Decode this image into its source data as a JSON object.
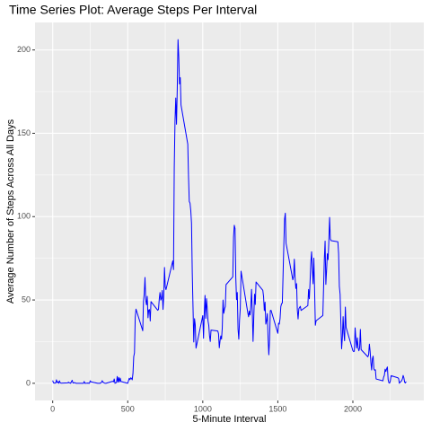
{
  "chart_data": {
    "type": "line",
    "title": "Time Series Plot: Average Steps Per Interval",
    "xlabel": "5-Minute Interval",
    "ylabel": "Average Number of Steps Across All Days",
    "color": "#0000ff",
    "grid": true,
    "xlim": [
      -117.75,
      2472.75
    ],
    "ylim": [
      -10.3,
      216.5
    ],
    "xticks": [
      0,
      500,
      1000,
      1500,
      2000
    ],
    "yticks": [
      0,
      50,
      100,
      150,
      200
    ],
    "xminorticks": [
      250,
      750,
      1250,
      1750,
      2250
    ],
    "yminorticks": [
      25,
      75,
      125,
      175
    ],
    "x": [
      0,
      5,
      10,
      15,
      20,
      25,
      30,
      35,
      40,
      45,
      50,
      55,
      100,
      105,
      110,
      115,
      120,
      125,
      130,
      135,
      140,
      145,
      150,
      155,
      200,
      205,
      210,
      215,
      220,
      225,
      230,
      235,
      240,
      245,
      250,
      255,
      300,
      305,
      310,
      315,
      320,
      325,
      330,
      335,
      340,
      345,
      350,
      355,
      400,
      405,
      410,
      415,
      420,
      425,
      430,
      435,
      440,
      445,
      450,
      455,
      500,
      505,
      510,
      515,
      520,
      525,
      530,
      535,
      540,
      545,
      550,
      555,
      600,
      605,
      610,
      615,
      620,
      625,
      630,
      635,
      640,
      645,
      650,
      655,
      700,
      705,
      710,
      715,
      720,
      725,
      730,
      735,
      740,
      745,
      750,
      755,
      800,
      805,
      810,
      815,
      820,
      825,
      830,
      835,
      840,
      845,
      850,
      855,
      900,
      905,
      910,
      915,
      920,
      925,
      930,
      935,
      940,
      945,
      950,
      955,
      1000,
      1005,
      1010,
      1015,
      1020,
      1025,
      1030,
      1035,
      1040,
      1045,
      1050,
      1055,
      1100,
      1105,
      1110,
      1115,
      1120,
      1125,
      1130,
      1135,
      1140,
      1145,
      1150,
      1155,
      1200,
      1205,
      1210,
      1215,
      1220,
      1225,
      1230,
      1235,
      1240,
      1245,
      1250,
      1255,
      1300,
      1305,
      1310,
      1315,
      1320,
      1325,
      1330,
      1335,
      1340,
      1345,
      1350,
      1355,
      1400,
      1405,
      1410,
      1415,
      1420,
      1425,
      1430,
      1435,
      1440,
      1445,
      1450,
      1455,
      1500,
      1505,
      1510,
      1515,
      1520,
      1525,
      1530,
      1535,
      1540,
      1545,
      1550,
      1555,
      1600,
      1605,
      1610,
      1615,
      1620,
      1625,
      1630,
      1635,
      1640,
      1645,
      1650,
      1655,
      1700,
      1705,
      1710,
      1715,
      1720,
      1725,
      1730,
      1735,
      1740,
      1745,
      1750,
      1755,
      1800,
      1805,
      1810,
      1815,
      1820,
      1825,
      1830,
      1835,
      1840,
      1845,
      1850,
      1855,
      1900,
      1905,
      1910,
      1915,
      1920,
      1925,
      1930,
      1935,
      1940,
      1945,
      1950,
      1955,
      2000,
      2005,
      2010,
      2015,
      2020,
      2025,
      2030,
      2035,
      2040,
      2045,
      2050,
      2055,
      2100,
      2105,
      2110,
      2115,
      2120,
      2125,
      2130,
      2135,
      2140,
      2145,
      2150,
      2155,
      2200,
      2205,
      2210,
      2215,
      2220,
      2225,
      2230,
      2235,
      2240,
      2245,
      2250,
      2255,
      2300,
      2305,
      2310,
      2315,
      2320,
      2325,
      2330,
      2335,
      2340,
      2345,
      2350,
      2355
    ],
    "values": [
      1.7,
      0.3,
      0.1,
      0.2,
      0.1,
      2.1,
      0.5,
      0.9,
      0,
      1.5,
      0.3,
      0.1,
      0.3,
      0.7,
      0.2,
      0.3,
      0,
      1.1,
      1.8,
      0.2,
      0.2,
      0.4,
      0.3,
      0,
      0,
      0,
      1.1,
      0,
      0,
      0.1,
      0,
      0.2,
      0,
      0,
      1.5,
      0.9,
      0,
      0,
      0,
      0,
      0.2,
      0.6,
      1.6,
      0.6,
      0.5,
      0.1,
      0,
      0,
      1.2,
      0.9,
      2.6,
      0,
      0.3,
      0.4,
      4.1,
      0.7,
      3.5,
      0.8,
      3.1,
      1.1,
      0,
      1.6,
      3,
      2.2,
      3.3,
      3,
      2.1,
      6.1,
      16,
      18.3,
      39.5,
      44.5,
      31.5,
      49.3,
      53.8,
      63.5,
      50,
      47.1,
      52.2,
      39.3,
      44,
      44.2,
      37.4,
      49,
      43.8,
      44.4,
      50.5,
      54.5,
      49.9,
      50.9,
      55.7,
      44.3,
      52.3,
      69.5,
      57.8,
      56.2,
      73.4,
      68.2,
      129.4,
      157.5,
      171.2,
      155.4,
      177.3,
      206.2,
      195.9,
      179.6,
      183.4,
      167,
      143.5,
      124,
      109.1,
      108.1,
      103.7,
      96,
      66.2,
      45.2,
      24.8,
      38.8,
      35,
      21.1,
      40.6,
      27,
      42.4,
      52.7,
      38.9,
      50.8,
      44.3,
      37.4,
      34.7,
      28.3,
      25.1,
      31.9,
      31.4,
      29.7,
      21.3,
      25.5,
      28.4,
      26.5,
      33.4,
      50,
      42,
      44.6,
      46,
      59.2,
      63.9,
      87.7,
      94.8,
      92.8,
      63.4,
      50.2,
      54.5,
      32.4,
      26.5,
      37.7,
      45.1,
      67.3,
      42.3,
      39.9,
      43.3,
      41,
      46.2,
      56.4,
      42.8,
      25.1,
      40,
      53.5,
      47.3,
      60.8,
      55.8,
      52,
      43.6,
      48.7,
      35.5,
      37.5,
      41.8,
      27.5,
      17.1,
      26.1,
      43.6,
      43.8,
      30,
      36.1,
      35.5,
      38.8,
      46,
      47.8,
      48.1,
      65.3,
      82.9,
      98.7,
      102.1,
      84,
      62.1,
      64.1,
      74.5,
      63.2,
      56.9,
      59.8,
      43.9,
      38.6,
      44.7,
      45.5,
      46.2,
      43.7,
      46.6,
      56.3,
      50.7,
      61.2,
      72.7,
      78.9,
      68.9,
      59.7,
      75.1,
      56.5,
      34.8,
      37.5,
      40.7,
      58,
      74.7,
      85.3,
      59.3,
      67.8,
      77.7,
      74.2,
      85.3,
      99.5,
      86.6,
      85.6,
      84.9,
      77.8,
      58,
      53.4,
      36.3,
      20.7,
      27.4,
      40,
      30.2,
      25.5,
      45.7,
      33.5,
      19.6,
      19,
      19.3,
      33.3,
      26.8,
      21.2,
      27.3,
      21.3,
      19.5,
      21.3,
      32.3,
      20.2,
      15.9,
      17.2,
      23.5,
      19.2,
      12.5,
      8,
      14.7,
      16.3,
      8.7,
      7.8,
      8.1,
      2.6,
      1.5,
      3.7,
      4.8,
      8.5,
      7.1,
      8.7,
      9.8,
      2.2,
      0.3,
      0.1,
      1.6,
      4.6,
      3.3,
      2.8,
      0,
      0.8,
      1,
      1.6,
      2.6,
      4.7,
      3.3,
      0.6,
      0.2,
      1.1
    ]
  }
}
